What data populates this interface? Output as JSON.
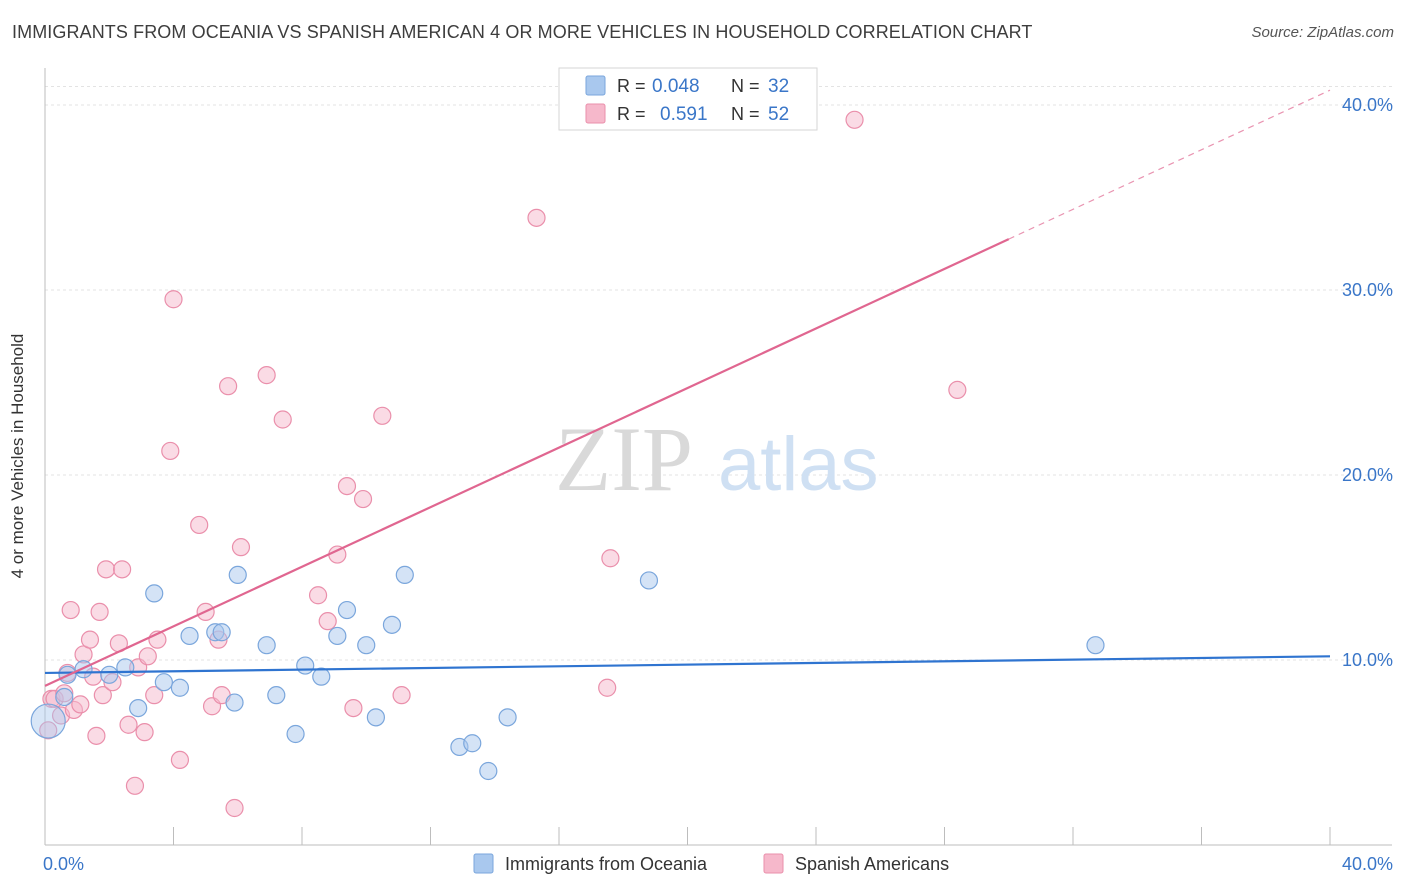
{
  "header": {
    "title": "IMMIGRANTS FROM OCEANIA VS SPANISH AMERICAN 4 OR MORE VEHICLES IN HOUSEHOLD CORRELATION CHART",
    "source": "Source: ZipAtlas.com"
  },
  "watermark": {
    "zip": "ZIP",
    "atlas": "atlas"
  },
  "stats_box": [
    {
      "r_label": "R =",
      "r_value": "0.048",
      "n_label": "N =",
      "n_value": "32"
    },
    {
      "r_label": "R =",
      "r_value": "0.591",
      "n_label": "N =",
      "n_value": "52"
    }
  ],
  "colors": {
    "series1_fill": "#a9c8ee",
    "series1_stroke": "#7aa6dc",
    "series1_line": "#2f74d0",
    "series2_fill": "#f6b8cb",
    "series2_stroke": "#ea8fab",
    "series2_line": "#e06690",
    "value_text": "#3a76c8"
  },
  "chart_data": {
    "type": "scatter",
    "title": "IMMIGRANTS FROM OCEANIA VS SPANISH AMERICAN 4 OR MORE VEHICLES IN HOUSEHOLD CORRELATION CHART",
    "xlabel": "",
    "ylabel": "4 or more Vehicles in Household",
    "xlim": [
      0,
      40
    ],
    "ylim": [
      0,
      42
    ],
    "x_tick_labels": [
      "0.0%",
      "40.0%"
    ],
    "y_ticks": [
      10,
      20,
      30,
      40
    ],
    "y_tick_labels": [
      "10.0%",
      "20.0%",
      "30.0%",
      "40.0%"
    ],
    "grid": true,
    "legend_position": "bottom-center",
    "series": [
      {
        "name": "Immigrants from Oceania",
        "R": 0.048,
        "N": 32,
        "trend": {
          "x": [
            0,
            40
          ],
          "y": [
            9.3,
            10.2
          ],
          "dashed_from": null
        },
        "points": [
          {
            "x": 0.1,
            "y": 6.7,
            "big": true
          },
          {
            "x": 0.6,
            "y": 8.0
          },
          {
            "x": 0.7,
            "y": 9.2
          },
          {
            "x": 1.2,
            "y": 9.5
          },
          {
            "x": 2.0,
            "y": 9.2
          },
          {
            "x": 2.5,
            "y": 9.6
          },
          {
            "x": 2.9,
            "y": 7.4
          },
          {
            "x": 3.4,
            "y": 13.6
          },
          {
            "x": 3.7,
            "y": 8.8
          },
          {
            "x": 4.2,
            "y": 8.5
          },
          {
            "x": 4.5,
            "y": 11.3
          },
          {
            "x": 5.3,
            "y": 11.5
          },
          {
            "x": 5.5,
            "y": 11.5
          },
          {
            "x": 5.9,
            "y": 7.7
          },
          {
            "x": 6.0,
            "y": 14.6
          },
          {
            "x": 6.9,
            "y": 10.8
          },
          {
            "x": 7.2,
            "y": 8.1
          },
          {
            "x": 7.8,
            "y": 6.0
          },
          {
            "x": 8.1,
            "y": 9.7
          },
          {
            "x": 8.6,
            "y": 9.1
          },
          {
            "x": 9.1,
            "y": 11.3
          },
          {
            "x": 9.4,
            "y": 12.7
          },
          {
            "x": 10.0,
            "y": 10.8
          },
          {
            "x": 10.3,
            "y": 6.9
          },
          {
            "x": 10.8,
            "y": 11.9
          },
          {
            "x": 11.2,
            "y": 14.6
          },
          {
            "x": 12.9,
            "y": 5.3
          },
          {
            "x": 13.3,
            "y": 5.5
          },
          {
            "x": 13.8,
            "y": 4.0
          },
          {
            "x": 14.4,
            "y": 6.9
          },
          {
            "x": 18.8,
            "y": 14.3
          },
          {
            "x": 32.7,
            "y": 10.8
          }
        ]
      },
      {
        "name": "Spanish Americans",
        "R": 0.591,
        "N": 52,
        "trend": {
          "x": [
            0,
            40
          ],
          "y": [
            8.6,
            40.8
          ],
          "dashed_from": 30
        },
        "points": [
          {
            "x": 0.1,
            "y": 6.2
          },
          {
            "x": 0.2,
            "y": 7.9
          },
          {
            "x": 0.3,
            "y": 7.9
          },
          {
            "x": 0.5,
            "y": 7.0
          },
          {
            "x": 0.6,
            "y": 8.2
          },
          {
            "x": 0.7,
            "y": 9.3
          },
          {
            "x": 0.8,
            "y": 12.7
          },
          {
            "x": 0.9,
            "y": 7.3
          },
          {
            "x": 1.1,
            "y": 7.6
          },
          {
            "x": 1.2,
            "y": 10.3
          },
          {
            "x": 1.4,
            "y": 11.1
          },
          {
            "x": 1.5,
            "y": 9.1
          },
          {
            "x": 1.6,
            "y": 5.9
          },
          {
            "x": 1.7,
            "y": 12.6
          },
          {
            "x": 1.8,
            "y": 8.1
          },
          {
            "x": 1.9,
            "y": 14.9
          },
          {
            "x": 2.1,
            "y": 8.8
          },
          {
            "x": 2.3,
            "y": 10.9
          },
          {
            "x": 2.4,
            "y": 14.9
          },
          {
            "x": 2.6,
            "y": 6.5
          },
          {
            "x": 2.8,
            "y": 3.2
          },
          {
            "x": 2.9,
            "y": 9.6
          },
          {
            "x": 3.1,
            "y": 6.1
          },
          {
            "x": 3.2,
            "y": 10.2
          },
          {
            "x": 3.4,
            "y": 8.1
          },
          {
            "x": 3.5,
            "y": 11.1
          },
          {
            "x": 3.9,
            "y": 21.3
          },
          {
            "x": 4.0,
            "y": 29.5
          },
          {
            "x": 4.2,
            "y": 4.6
          },
          {
            "x": 4.8,
            "y": 17.3
          },
          {
            "x": 5.0,
            "y": 12.6
          },
          {
            "x": 5.2,
            "y": 7.5
          },
          {
            "x": 5.4,
            "y": 11.1
          },
          {
            "x": 5.5,
            "y": 8.1
          },
          {
            "x": 5.7,
            "y": 24.8
          },
          {
            "x": 5.9,
            "y": 2.0
          },
          {
            "x": 6.1,
            "y": 16.1
          },
          {
            "x": 6.9,
            "y": 25.4
          },
          {
            "x": 7.4,
            "y": 23.0
          },
          {
            "x": 8.5,
            "y": 13.5
          },
          {
            "x": 8.8,
            "y": 12.1
          },
          {
            "x": 9.1,
            "y": 15.7
          },
          {
            "x": 9.4,
            "y": 19.4
          },
          {
            "x": 9.6,
            "y": 7.4
          },
          {
            "x": 9.9,
            "y": 18.7
          },
          {
            "x": 10.5,
            "y": 23.2
          },
          {
            "x": 11.1,
            "y": 8.1
          },
          {
            "x": 15.3,
            "y": 33.9
          },
          {
            "x": 17.5,
            "y": 8.5
          },
          {
            "x": 17.6,
            "y": 15.5
          },
          {
            "x": 25.2,
            "y": 39.2
          },
          {
            "x": 28.4,
            "y": 24.6
          }
        ]
      }
    ]
  }
}
